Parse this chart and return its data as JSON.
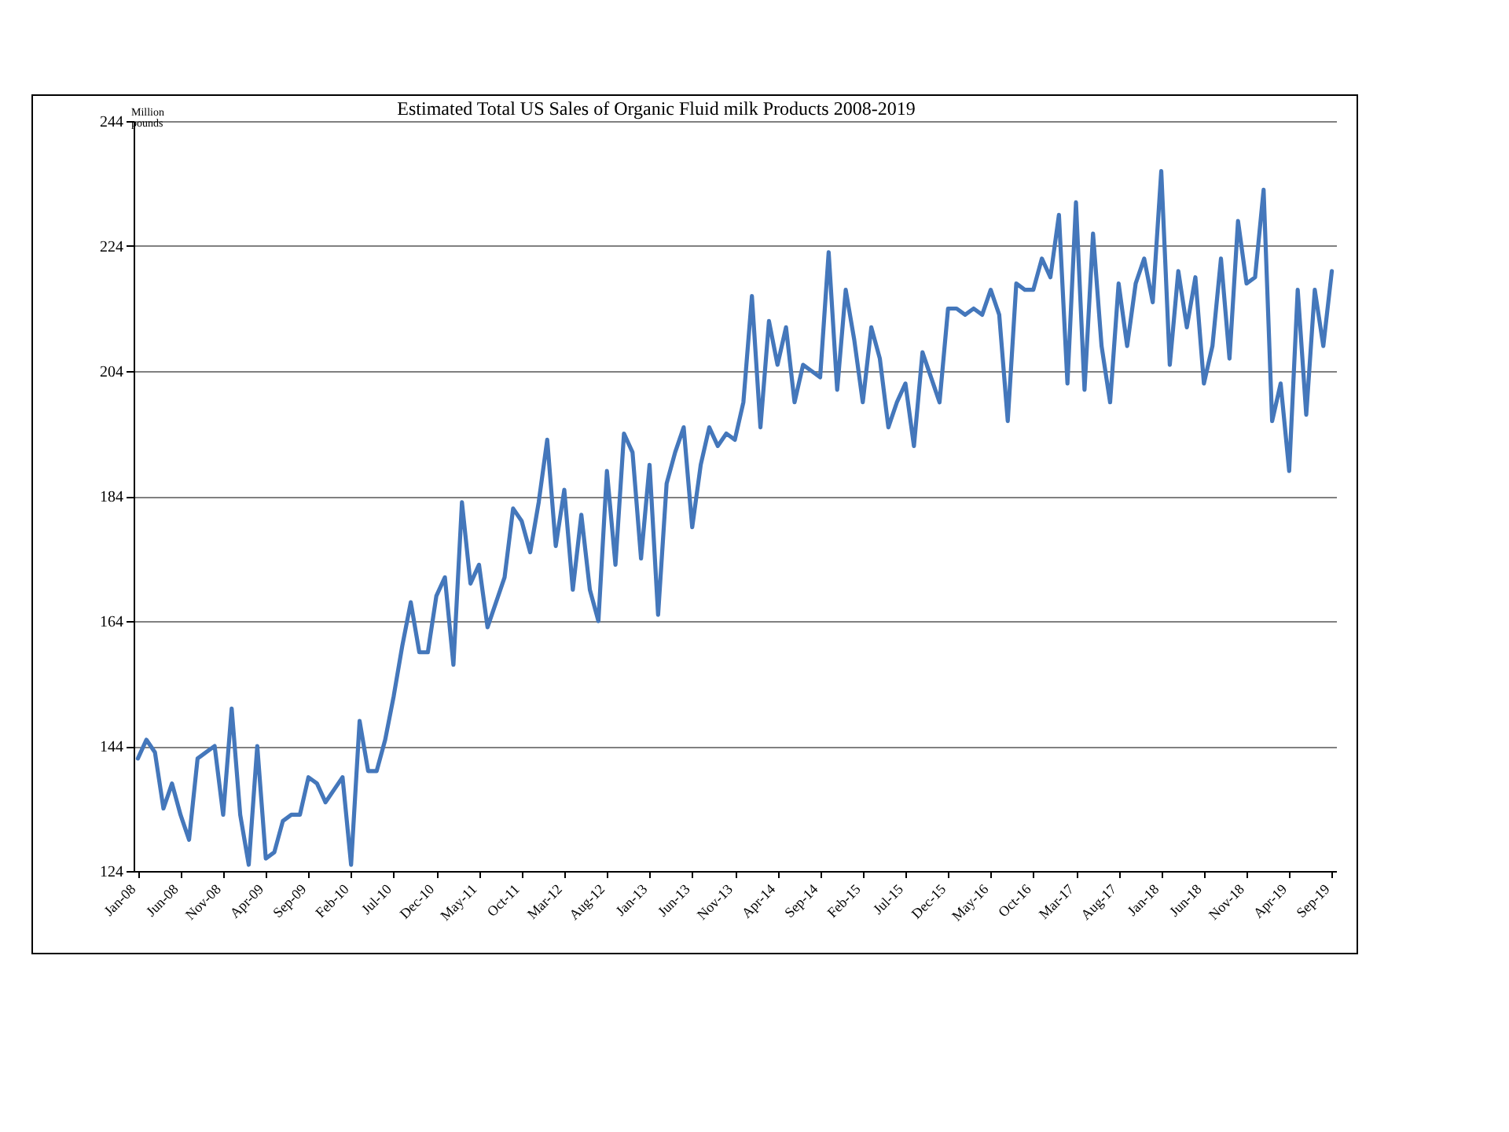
{
  "chart_data": {
    "type": "line",
    "title": "Estimated Total US Sales of Organic Fluid milk  Products 2008-2019",
    "ylabel": "Million pounds",
    "categories": [
      "Jan-08",
      null,
      null,
      null,
      null,
      "Jun-08",
      null,
      null,
      null,
      null,
      "Nov-08",
      null,
      null,
      null,
      null,
      "Apr-09",
      null,
      null,
      null,
      null,
      "Sep-09",
      null,
      null,
      null,
      null,
      "Feb-10",
      null,
      null,
      null,
      null,
      "Jul-10",
      null,
      null,
      null,
      null,
      "Dec-10",
      null,
      null,
      null,
      null,
      "May-11",
      null,
      null,
      null,
      null,
      "Oct-11",
      null,
      null,
      null,
      null,
      "Mar-12",
      null,
      null,
      null,
      null,
      "Aug-12",
      null,
      null,
      null,
      null,
      "Jan-13",
      null,
      null,
      null,
      null,
      "Jun-13",
      null,
      null,
      null,
      null,
      "Nov-13",
      null,
      null,
      null,
      null,
      "Apr-14",
      null,
      null,
      null,
      null,
      "Sep-14",
      null,
      null,
      null,
      null,
      "Feb-15",
      null,
      null,
      null,
      null,
      "Jul-15",
      null,
      null,
      null,
      null,
      "Dec-15",
      null,
      null,
      null,
      null,
      "May-16",
      null,
      null,
      null,
      null,
      "Oct-16",
      null,
      null,
      null,
      null,
      "Mar-17",
      null,
      null,
      null,
      null,
      "Aug-17",
      null,
      null,
      null,
      null,
      "Jan-18",
      null,
      null,
      null,
      null,
      "Jun-18",
      null,
      null,
      null,
      null,
      "Nov-18",
      null,
      null,
      null,
      null,
      "Apr-19",
      null,
      null,
      null,
      null,
      "Sep-19"
    ],
    "series": [
      {
        "color": "#4477bb",
        "values": [
          142,
          145,
          143,
          134,
          138,
          133,
          129,
          142,
          143,
          144,
          133,
          150,
          133,
          125,
          144,
          126,
          127,
          132,
          133,
          133,
          139,
          138,
          135,
          137,
          139,
          125,
          148,
          140,
          140,
          145,
          152,
          160,
          167,
          159,
          159,
          168,
          171,
          157,
          183,
          170,
          173,
          163,
          167,
          171,
          182,
          180,
          175,
          183,
          193,
          176,
          185,
          169,
          181,
          169,
          164,
          188,
          173,
          194,
          191,
          174,
          189,
          165,
          186,
          191,
          195,
          179,
          189,
          195,
          192,
          194,
          193,
          199,
          216,
          195,
          212,
          205,
          211,
          199,
          205,
          204,
          203,
          223,
          201,
          217,
          209,
          199,
          211,
          206,
          195,
          199,
          202,
          192,
          207,
          203,
          199,
          214,
          214,
          213,
          214,
          213,
          217,
          213,
          196,
          218,
          217,
          217,
          222,
          219,
          229,
          202,
          231,
          201,
          226,
          208,
          199,
          218,
          208,
          218,
          222,
          215,
          236,
          205,
          220,
          211,
          219,
          202,
          208,
          222,
          206,
          228,
          218,
          219,
          233,
          196,
          202,
          188,
          217,
          197,
          217,
          208,
          220
        ]
      }
    ],
    "ylim": [
      124,
      244
    ],
    "yticks": [
      124,
      144,
      164,
      184,
      204,
      224,
      244
    ],
    "grid": "y",
    "marker": "none",
    "line_style": "solid"
  }
}
